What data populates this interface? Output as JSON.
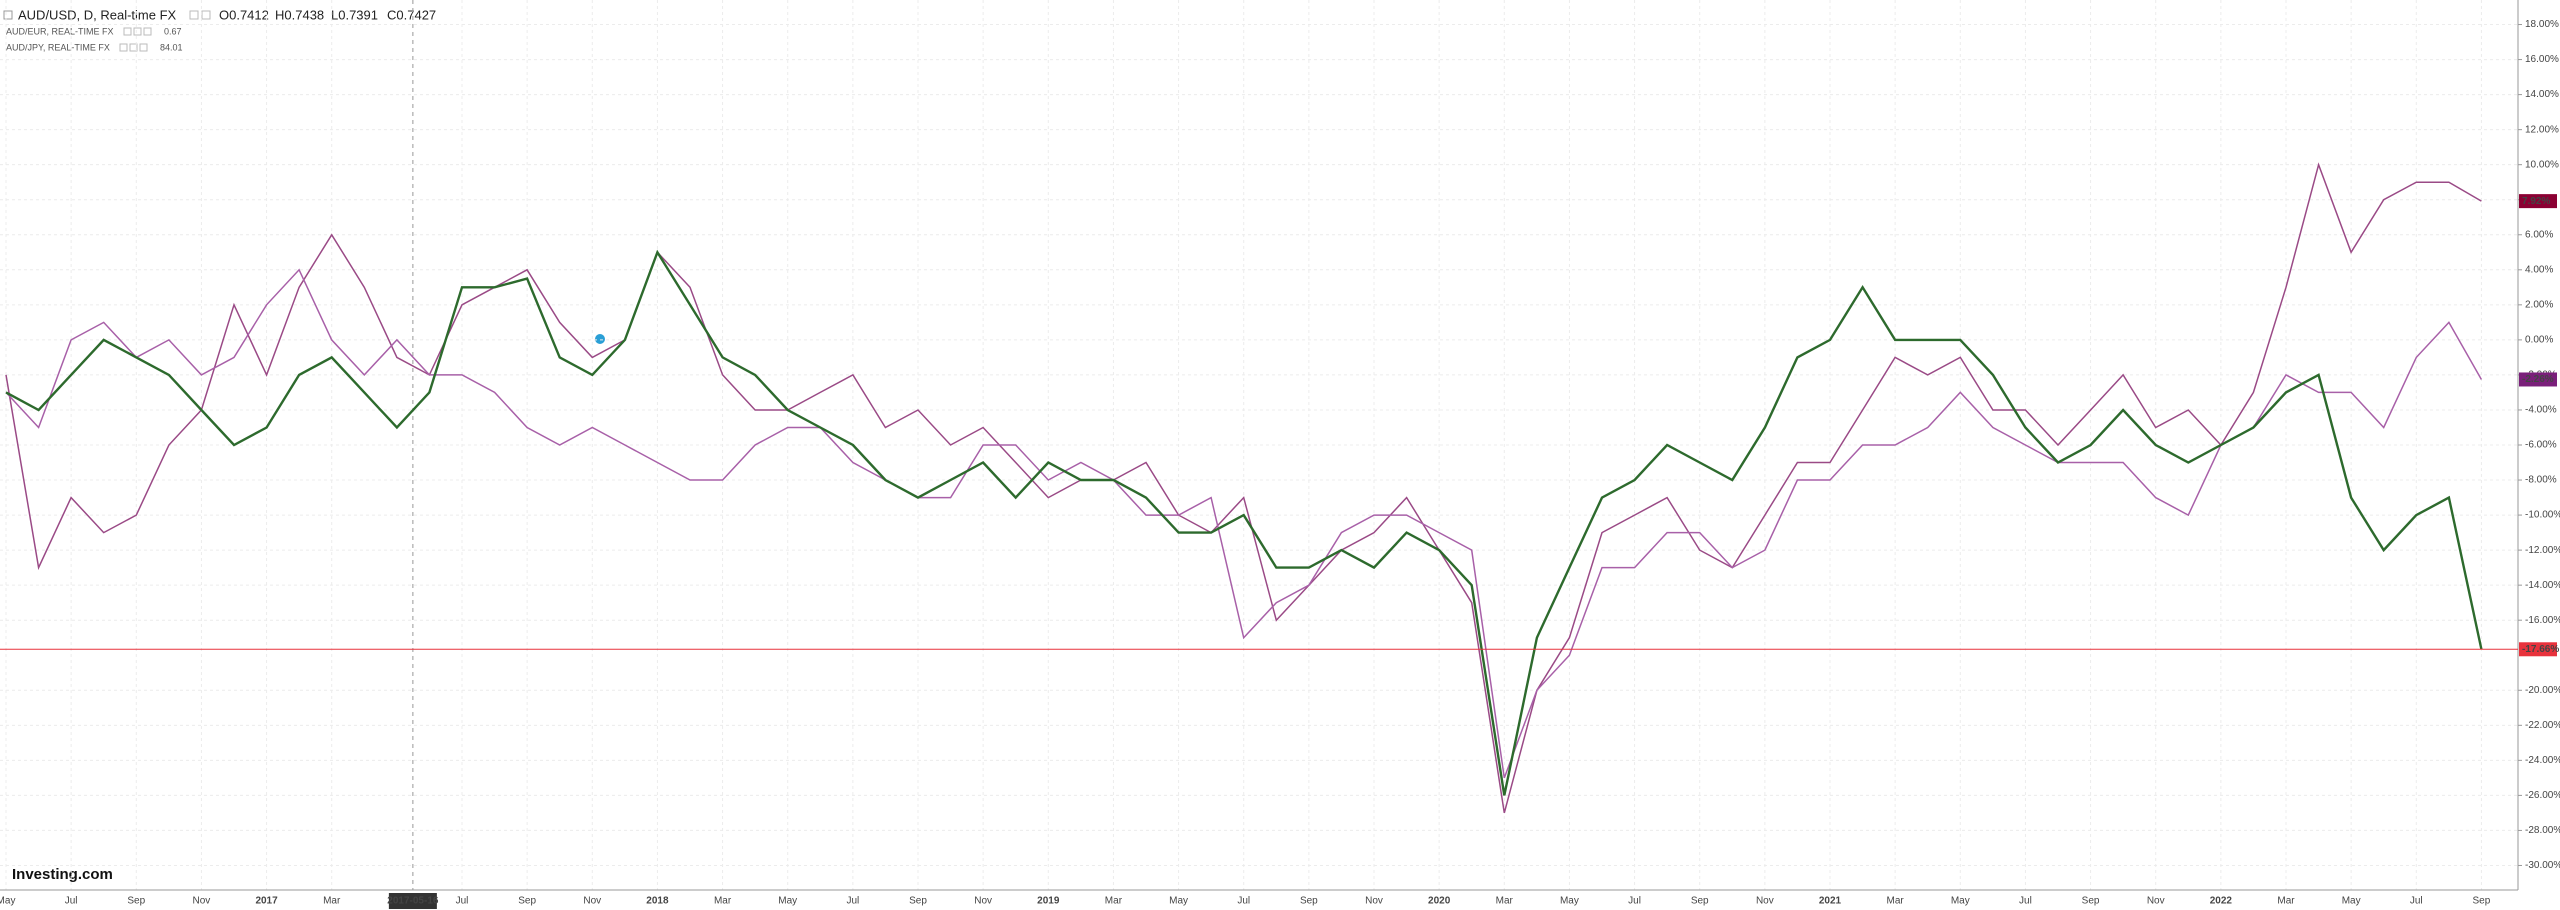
{
  "chart_data": {
    "type": "line",
    "title": "AUD/USD, D, Real-time FX",
    "ohlc": [
      "O0.7412",
      "H0.7438",
      "L0.7391",
      "C0.7427"
    ],
    "crosshair": "2017-05-16",
    "logo": "Investing.com",
    "x": [
      "2016-05",
      "2016-06",
      "2016-07",
      "2016-08",
      "2016-09",
      "2016-10",
      "2016-11",
      "2016-12",
      "2017-01",
      "2017-02",
      "2017-03",
      "2017-04",
      "2017-05",
      "2017-06",
      "2017-07",
      "2017-08",
      "2017-09",
      "2017-10",
      "2017-11",
      "2017-12",
      "2018-01",
      "2018-02",
      "2018-03",
      "2018-04",
      "2018-05",
      "2018-06",
      "2018-07",
      "2018-08",
      "2018-09",
      "2018-10",
      "2018-11",
      "2018-12",
      "2019-01",
      "2019-02",
      "2019-03",
      "2019-04",
      "2019-05",
      "2019-06",
      "2019-07",
      "2019-08",
      "2019-09",
      "2019-10",
      "2019-11",
      "2019-12",
      "2020-01",
      "2020-02",
      "2020-03",
      "2020-04",
      "2020-05",
      "2020-06",
      "2020-07",
      "2020-08",
      "2020-09",
      "2020-10",
      "2020-11",
      "2020-12",
      "2021-01",
      "2021-02",
      "2021-03",
      "2021-04",
      "2021-05",
      "2021-06",
      "2021-07",
      "2021-08",
      "2021-09",
      "2021-10",
      "2021-11",
      "2021-12",
      "2022-01",
      "2022-02",
      "2022-03",
      "2022-04",
      "2022-05",
      "2022-06",
      "2022-07",
      "2022-08",
      "2022-09"
    ],
    "series": [
      {
        "name": "AUD/USD",
        "color": "#2d6a2d",
        "tag_color": "#e8323c",
        "last_label": "-17.66%",
        "values": [
          -3,
          -4,
          -2,
          0,
          -1,
          -2,
          -4,
          -6,
          -5,
          -2,
          -1,
          -3,
          -5,
          -3,
          3,
          3,
          3.5,
          -1,
          -2,
          0,
          5,
          2,
          -1,
          -2,
          -4,
          -5,
          -6,
          -8,
          -9,
          -8,
          -7,
          -9,
          -7,
          -8,
          -8,
          -9,
          -11,
          -11,
          -10,
          -13,
          -13,
          -12,
          -13,
          -11,
          -12,
          -14,
          -26,
          -17,
          -13,
          -9,
          -8,
          -6,
          -7,
          -8,
          -5,
          -1,
          0,
          3,
          0,
          0,
          0,
          -2,
          -5,
          -7,
          -6,
          -4,
          -6,
          -7,
          -6,
          -5,
          -3,
          -2,
          -9,
          -12,
          -10,
          -9,
          -17.66
        ]
      },
      {
        "name": "AUD/EUR, REAL-TIME FX",
        "legend_value": "0.67",
        "color": "#a860a8",
        "tag_color": "#7a1f7a",
        "last_label": "-2.26%",
        "values": [
          -3,
          -5,
          0,
          1,
          -1,
          0,
          -2,
          -1,
          2,
          4,
          0,
          -2,
          0,
          -2,
          -2,
          -3,
          -5,
          -6,
          -5,
          -6,
          -7,
          -8,
          -8,
          -6,
          -5,
          -5,
          -7,
          -8,
          -9,
          -9,
          -6,
          -6,
          -8,
          -7,
          -8,
          -10,
          -10,
          -9,
          -17,
          -15,
          -14,
          -11,
          -10,
          -10,
          -11,
          -12,
          -25,
          -20,
          -18,
          -13,
          -13,
          -11,
          -11,
          -13,
          -12,
          -8,
          -8,
          -6,
          -6,
          -5,
          -3,
          -5,
          -6,
          -7,
          -7,
          -7,
          -9,
          -10,
          -6,
          -5,
          -2,
          -3,
          -3,
          -5,
          -1,
          1,
          -2.26
        ]
      },
      {
        "name": "AUD/JPY, REAL-TIME FX",
        "legend_value": "84.01",
        "color": "#9a4a86",
        "tag_color": "#8b0033",
        "last_label": "7.92%",
        "values": [
          -2,
          -13,
          -9,
          -11,
          -10,
          -6,
          -4,
          2,
          -2,
          3,
          6,
          3,
          -1,
          -2,
          2,
          3,
          4,
          1,
          -1,
          0,
          5,
          3,
          -2,
          -4,
          -4,
          -3,
          -2,
          -5,
          -4,
          -6,
          -5,
          -7,
          -9,
          -8,
          -8,
          -7,
          -10,
          -11,
          -9,
          -16,
          -14,
          -12,
          -11,
          -9,
          -12,
          -15,
          -27,
          -20,
          -17,
          -11,
          -10,
          -9,
          -12,
          -13,
          -10,
          -7,
          -7,
          -4,
          -1,
          -2,
          -1,
          -4,
          -4,
          -6,
          -4,
          -2,
          -5,
          -4,
          -6,
          -3,
          3,
          10,
          5,
          8,
          9,
          9,
          7.92
        ]
      }
    ],
    "xlim": [
      "2016-05",
      "2022-10"
    ],
    "xticks": [
      {
        "value": "2016-05",
        "label": "May"
      },
      {
        "value": "2016-07",
        "label": "Jul"
      },
      {
        "value": "2016-09",
        "label": "Sep"
      },
      {
        "value": "2016-11",
        "label": "Nov"
      },
      {
        "value": "2017-01",
        "label": "2017"
      },
      {
        "value": "2017-03",
        "label": "Mar"
      },
      {
        "value": "2017-07",
        "label": "Jul"
      },
      {
        "value": "2017-09",
        "label": "Sep"
      },
      {
        "value": "2017-11",
        "label": "Nov"
      },
      {
        "value": "2018-01",
        "label": "2018"
      },
      {
        "value": "2018-03",
        "label": "Mar"
      },
      {
        "value": "2018-05",
        "label": "May"
      },
      {
        "value": "2018-07",
        "label": "Jul"
      },
      {
        "value": "2018-09",
        "label": "Sep"
      },
      {
        "value": "2018-11",
        "label": "Nov"
      },
      {
        "value": "2019-01",
        "label": "2019"
      },
      {
        "value": "2019-03",
        "label": "Mar"
      },
      {
        "value": "2019-05",
        "label": "May"
      },
      {
        "value": "2019-07",
        "label": "Jul"
      },
      {
        "value": "2019-09",
        "label": "Sep"
      },
      {
        "value": "2019-11",
        "label": "Nov"
      },
      {
        "value": "2020-01",
        "label": "2020"
      },
      {
        "value": "2020-03",
        "label": "Mar"
      },
      {
        "value": "2020-05",
        "label": "May"
      },
      {
        "value": "2020-07",
        "label": "Jul"
      },
      {
        "value": "2020-09",
        "label": "Sep"
      },
      {
        "value": "2020-11",
        "label": "Nov"
      },
      {
        "value": "2021-01",
        "label": "2021"
      },
      {
        "value": "2021-03",
        "label": "Mar"
      },
      {
        "value": "2021-05",
        "label": "May"
      },
      {
        "value": "2021-07",
        "label": "Jul"
      },
      {
        "value": "2021-09",
        "label": "Sep"
      },
      {
        "value": "2021-11",
        "label": "Nov"
      },
      {
        "value": "2022-01",
        "label": "2022"
      },
      {
        "value": "2022-03",
        "label": "Mar"
      },
      {
        "value": "2022-05",
        "label": "May"
      },
      {
        "value": "2022-07",
        "label": "Jul"
      },
      {
        "value": "2022-09",
        "label": "Sep"
      }
    ],
    "ylim": [
      -31.4,
      19.4
    ],
    "yticks": [
      {
        "value": 18,
        "label": "18.00%"
      },
      {
        "value": 16,
        "label": "16.00%"
      },
      {
        "value": 14,
        "label": "14.00%"
      },
      {
        "value": 12,
        "label": "12.00%"
      },
      {
        "value": 10,
        "label": "10.00%"
      },
      {
        "value": 8,
        "label": "8.00%"
      },
      {
        "value": 6,
        "label": "6.00%"
      },
      {
        "value": 4,
        "label": "4.00%"
      },
      {
        "value": 2,
        "label": "2.00%"
      },
      {
        "value": 0,
        "label": "0.00%"
      },
      {
        "value": -2,
        "label": "-2.00%"
      },
      {
        "value": -4,
        "label": "-4.00%"
      },
      {
        "value": -6,
        "label": "-6.00%"
      },
      {
        "value": -8,
        "label": "-8.00%"
      },
      {
        "value": -10,
        "label": "-10.00%"
      },
      {
        "value": -12,
        "label": "-12.00%"
      },
      {
        "value": -14,
        "label": "-14.00%"
      },
      {
        "value": -16,
        "label": "-16.00%"
      },
      {
        "value": -20,
        "label": "-20.00%"
      },
      {
        "value": -22,
        "label": "-22.00%"
      },
      {
        "value": -24,
        "label": "-24.00%"
      },
      {
        "value": -26,
        "label": "-26.00%"
      },
      {
        "value": -28,
        "label": "-28.00%"
      },
      {
        "value": -30,
        "label": "-30.00%"
      }
    ],
    "grid": true
  }
}
